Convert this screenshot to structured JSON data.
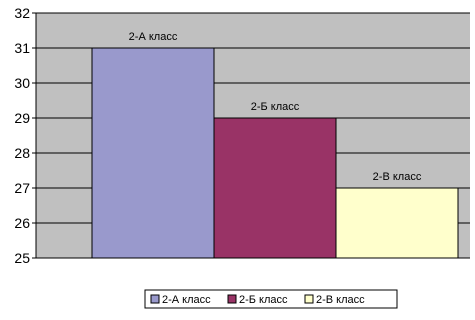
{
  "chart_data": {
    "type": "bar",
    "categories": [
      "2-А класс",
      "2-Б класс",
      "2-В класс"
    ],
    "values": [
      31,
      29,
      27
    ],
    "ylim": [
      25,
      32
    ],
    "yticks": [
      25,
      26,
      27,
      28,
      29,
      30,
      31,
      32
    ],
    "grid": true,
    "legend_position": "bottom",
    "colors": {
      "plot_background": "#c0c0c0",
      "bars": [
        "#9999cc",
        "#993366",
        "#ffffcc"
      ],
      "bar_outline": "#000000"
    }
  }
}
